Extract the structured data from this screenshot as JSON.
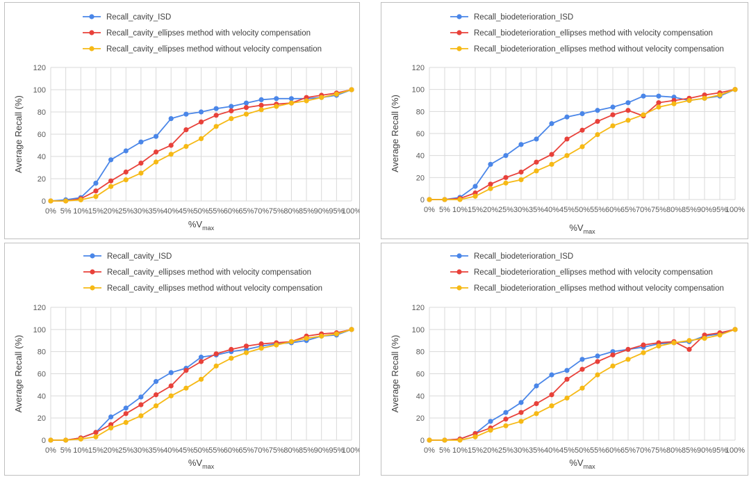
{
  "colors": {
    "isd": "#4a86e8",
    "with_vc": "#e8413a",
    "without_vc": "#f6b915"
  },
  "chart_data": [
    {
      "type": "line",
      "xlabel": "%V",
      "xlabel_sub": "max",
      "ylabel": "Average Recall (%)",
      "ylim": [
        0,
        120
      ],
      "yticks": [
        "0",
        "20",
        "40",
        "60",
        "80",
        "100",
        "120"
      ],
      "categories": [
        "0%",
        "5%",
        "10%",
        "15%",
        "20%",
        "25%",
        "30%",
        "35%",
        "40%",
        "45%",
        "50%",
        "55%",
        "60%",
        "65%",
        "70%",
        "75%",
        "80%",
        "85%",
        "90%",
        "95%",
        "100%"
      ],
      "grid": true,
      "legend_position": "top",
      "series": [
        {
          "name": "Recall_cavity_ISD",
          "color": "#4a86e8",
          "values": [
            0,
            1,
            3,
            16,
            37,
            45,
            53,
            58,
            74,
            78,
            80,
            83,
            85,
            88,
            91,
            92,
            92,
            92,
            93,
            95,
            100
          ]
        },
        {
          "name": "Recall_cavity_ellipses method with velocity compensation",
          "color": "#e8413a",
          "values": [
            0,
            0,
            2,
            9,
            18,
            26,
            34,
            44,
            50,
            64,
            71,
            77,
            81,
            84,
            86,
            87,
            88,
            93,
            95,
            97,
            100
          ]
        },
        {
          "name": "Recall_cavity_ellipses method without velocity compensation",
          "color": "#f6b915",
          "values": [
            0,
            0,
            1,
            4,
            13,
            19,
            25,
            35,
            42,
            49,
            56,
            67,
            74,
            78,
            82,
            85,
            88,
            90,
            93,
            96,
            100
          ]
        }
      ]
    },
    {
      "type": "line",
      "xlabel": "%V",
      "xlabel_sub": "max",
      "ylabel": "Average Recall (%)",
      "ylim": [
        0,
        120
      ],
      "yticks": [
        "0",
        "20",
        "40",
        "60",
        "80",
        "100",
        "120"
      ],
      "categories": [
        "0%",
        "5%",
        "10%",
        "15%",
        "20%",
        "25%",
        "30%",
        "35%",
        "40%",
        "45%",
        "50%",
        "55%",
        "60%",
        "65%",
        "70%",
        "75%",
        "80%",
        "85%",
        "90%",
        "95%",
        "100%"
      ],
      "grid": true,
      "legend_position": "top",
      "series": [
        {
          "name": "Recall_biodeterioration_ISD",
          "color": "#4a86e8",
          "values": [
            0,
            0,
            2,
            12,
            32,
            40,
            50,
            55,
            69,
            75,
            78,
            81,
            84,
            88,
            94,
            94,
            93,
            90,
            92,
            94,
            100
          ]
        },
        {
          "name": "Recall_biodeterioration_ellipses method with velocity compensation",
          "color": "#e8413a",
          "values": [
            0,
            0,
            1,
            6,
            14,
            20,
            25,
            34,
            41,
            55,
            63,
            71,
            77,
            81,
            76,
            88,
            90,
            92,
            95,
            97,
            100
          ]
        },
        {
          "name": "Recall_biodeterioration_ellipses method without velocity compensation",
          "color": "#f6b915",
          "values": [
            0,
            0,
            0,
            3,
            10,
            15,
            18,
            26,
            32,
            40,
            48,
            59,
            67,
            72,
            77,
            84,
            87,
            90,
            92,
            95,
            100
          ]
        }
      ]
    },
    {
      "type": "line",
      "xlabel": "%V",
      "xlabel_sub": "max",
      "ylabel": "Average Recall (%)",
      "ylim": [
        0,
        120
      ],
      "yticks": [
        "0",
        "20",
        "40",
        "60",
        "80",
        "100",
        "120"
      ],
      "categories": [
        "0%",
        "5%",
        "10%",
        "15%",
        "20%",
        "25%",
        "30%",
        "35%",
        "40%",
        "45%",
        "50%",
        "55%",
        "60%",
        "65%",
        "70%",
        "75%",
        "80%",
        "85%",
        "90%",
        "95%",
        "100%"
      ],
      "grid": true,
      "legend_position": "top",
      "series": [
        {
          "name": "Recall_cavity_ISD",
          "color": "#4a86e8",
          "values": [
            0,
            0,
            2,
            7,
            21,
            29,
            39,
            53,
            61,
            65,
            75,
            77,
            80,
            82,
            85,
            87,
            88,
            90,
            94,
            95,
            100
          ]
        },
        {
          "name": "Recall_cavity_ellipses method with velocity compensation",
          "color": "#e8413a",
          "values": [
            0,
            0,
            2,
            7,
            14,
            24,
            32,
            41,
            49,
            63,
            71,
            78,
            82,
            85,
            87,
            88,
            89,
            94,
            96,
            97,
            100
          ]
        },
        {
          "name": "Recall_cavity_ellipses method without velocity compensation",
          "color": "#f6b915",
          "values": [
            0,
            0,
            1,
            3,
            11,
            16,
            22,
            31,
            40,
            47,
            55,
            67,
            74,
            79,
            83,
            86,
            89,
            92,
            94,
            96,
            100
          ]
        }
      ]
    },
    {
      "type": "line",
      "xlabel": "%V",
      "xlabel_sub": "max",
      "ylabel": "Average Recall (%)",
      "ylim": [
        0,
        120
      ],
      "yticks": [
        "0",
        "20",
        "40",
        "60",
        "80",
        "100",
        "120"
      ],
      "categories": [
        "0%",
        "5%",
        "10%",
        "15%",
        "20%",
        "25%",
        "30%",
        "35%",
        "40%",
        "45%",
        "50%",
        "55%",
        "60%",
        "65%",
        "70%",
        "75%",
        "80%",
        "85%",
        "90%",
        "95%",
        "100%"
      ],
      "grid": true,
      "legend_position": "top",
      "series": [
        {
          "name": "Recall_biodeterioration_ISD",
          "color": "#4a86e8",
          "values": [
            0,
            0,
            1,
            6,
            17,
            25,
            34,
            49,
            59,
            63,
            73,
            76,
            80,
            82,
            84,
            87,
            88,
            89,
            94,
            96,
            100
          ]
        },
        {
          "name": "Recall_biodeterioration_ellipses method with velocity compensation",
          "color": "#e8413a",
          "values": [
            0,
            0,
            1,
            6,
            11,
            19,
            25,
            33,
            41,
            55,
            64,
            71,
            77,
            82,
            86,
            88,
            89,
            82,
            95,
            97,
            100
          ]
        },
        {
          "name": "Recall_biodeterioration_ellipses method without velocity compensation",
          "color": "#f6b915",
          "values": [
            0,
            0,
            0,
            3,
            9,
            13,
            17,
            24,
            31,
            38,
            47,
            59,
            67,
            73,
            79,
            85,
            88,
            90,
            92,
            95,
            100
          ]
        }
      ]
    }
  ]
}
